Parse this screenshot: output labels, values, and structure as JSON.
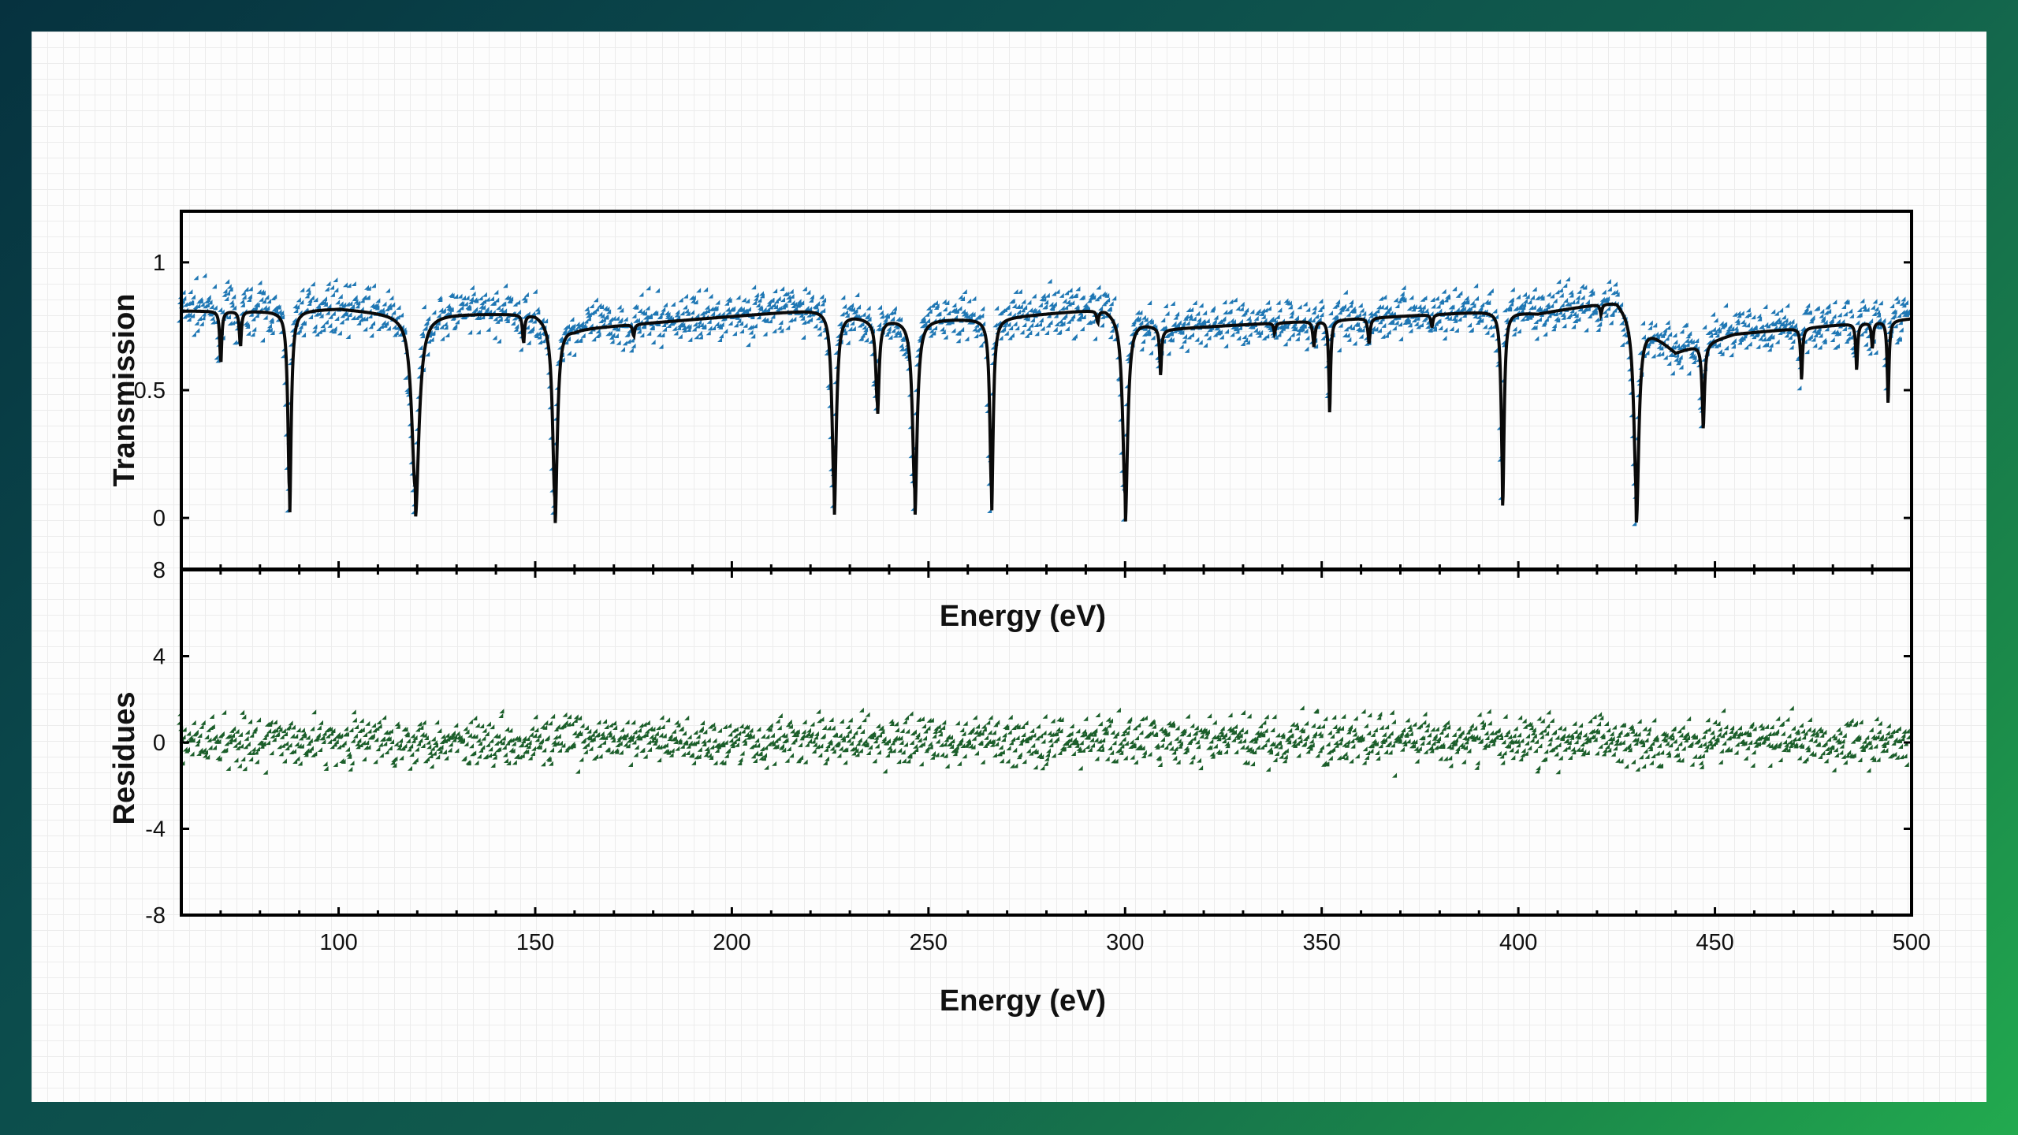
{
  "theme": {
    "transmission_color": "#1f77b4",
    "transmission_edge": "#1a5a86",
    "fit_color": "#0a0a0a",
    "residue_color": "#1b5e2a"
  },
  "chart_data": [
    {
      "type": "scatter",
      "panel": "top",
      "ylabel": "Transmission",
      "xlabel": "Energy (eV)",
      "xlim": [
        60,
        500
      ],
      "ylim": [
        -0.2,
        1.2
      ],
      "yticks": [
        0,
        0.5,
        1
      ],
      "ytick_labels": [
        "0",
        "0.5",
        "1"
      ],
      "baseline": [
        [
          60,
          0.81
        ],
        [
          85,
          0.81
        ],
        [
          100,
          0.82
        ],
        [
          115,
          0.8
        ],
        [
          150,
          0.8
        ],
        [
          160,
          0.74
        ],
        [
          225,
          0.82
        ],
        [
          235,
          0.78
        ],
        [
          250,
          0.78
        ],
        [
          265,
          0.78
        ],
        [
          295,
          0.82
        ],
        [
          310,
          0.74
        ],
        [
          395,
          0.81
        ],
        [
          405,
          0.8
        ],
        [
          425,
          0.85
        ],
        [
          440,
          0.65
        ],
        [
          455,
          0.72
        ],
        [
          500,
          0.78
        ]
      ],
      "dips": [
        {
          "x": 70,
          "depth": 0.22,
          "width": 0.6
        },
        {
          "x": 75,
          "depth": 0.15,
          "width": 0.6
        },
        {
          "x": 87.5,
          "depth": 0.82,
          "width": 1.0
        },
        {
          "x": 119.5,
          "depth": 0.8,
          "width": 2.2
        },
        {
          "x": 147,
          "depth": 0.12,
          "width": 0.6
        },
        {
          "x": 155,
          "depth": 0.81,
          "width": 1.4
        },
        {
          "x": 175,
          "depth": 0.05,
          "width": 0.6
        },
        {
          "x": 226,
          "depth": 0.82,
          "width": 1.3
        },
        {
          "x": 237,
          "depth": 0.38,
          "width": 1.0
        },
        {
          "x": 246.5,
          "depth": 0.78,
          "width": 1.4
        },
        {
          "x": 266,
          "depth": 0.78,
          "width": 1.0
        },
        {
          "x": 293,
          "depth": 0.05,
          "width": 0.6
        },
        {
          "x": 300,
          "depth": 0.82,
          "width": 1.5
        },
        {
          "x": 309,
          "depth": 0.18,
          "width": 0.6
        },
        {
          "x": 338,
          "depth": 0.04,
          "width": 0.6
        },
        {
          "x": 348,
          "depth": 0.1,
          "width": 0.7
        },
        {
          "x": 352,
          "depth": 0.36,
          "width": 0.6
        },
        {
          "x": 362,
          "depth": 0.1,
          "width": 0.7
        },
        {
          "x": 378,
          "depth": 0.05,
          "width": 0.6
        },
        {
          "x": 396,
          "depth": 0.76,
          "width": 0.9
        },
        {
          "x": 421,
          "depth": 0.04,
          "width": 0.6
        },
        {
          "x": 430,
          "depth": 0.8,
          "width": 1.5
        },
        {
          "x": 447,
          "depth": 0.33,
          "width": 0.8
        },
        {
          "x": 472,
          "depth": 0.2,
          "width": 0.6
        },
        {
          "x": 486,
          "depth": 0.18,
          "width": 0.6
        },
        {
          "x": 490,
          "depth": 0.1,
          "width": 0.6
        },
        {
          "x": 494,
          "depth": 0.32,
          "width": 0.6
        }
      ],
      "series": [
        {
          "name": "",
          "role": "measured",
          "marker": "diamond",
          "noise": 0.045
        },
        {
          "name": "",
          "role": "fit",
          "marker": "line"
        }
      ]
    },
    {
      "type": "scatter",
      "panel": "bottom",
      "ylabel": "Residues",
      "xlabel": "Energy (eV)",
      "xlim": [
        60,
        500
      ],
      "ylim": [
        -8,
        8
      ],
      "yticks": [
        -8,
        -4,
        0,
        4,
        8
      ],
      "ytick_labels": [
        "-8",
        "-4",
        "0",
        "4",
        "8"
      ],
      "xticks": [
        100,
        150,
        200,
        250,
        300,
        350,
        400,
        450,
        500
      ],
      "xtick_labels": [
        "100",
        "150",
        "200",
        "250",
        "300",
        "350",
        "400",
        "450",
        "500"
      ],
      "series": [
        {
          "name": "",
          "role": "residues",
          "marker": "diamond",
          "mean": 0,
          "spread": 0.55,
          "max_abs": 2.0
        }
      ]
    }
  ]
}
